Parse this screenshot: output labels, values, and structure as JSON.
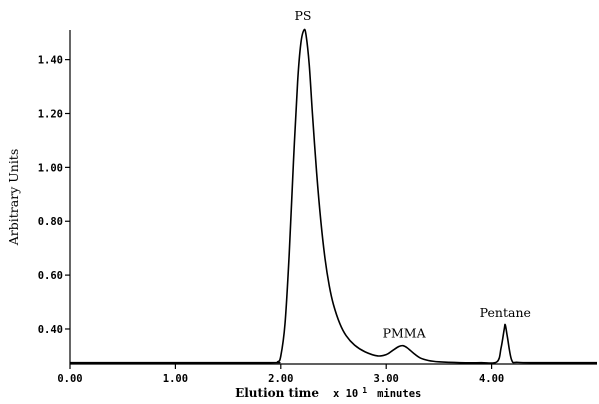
{
  "chart_data": {
    "type": "line",
    "title": "",
    "xlabel": "Elution time",
    "xlabel_unit": "x 10",
    "xlabel_exponent": "1",
    "xlabel_unit_suffix": "minutes",
    "ylabel": "Arbitrary Units",
    "xlim": [
      0.0,
      5.0
    ],
    "ylim": [
      0.27,
      1.51
    ],
    "x_ticks": [
      "0.00",
      "1.00",
      "2.00",
      "3.00",
      "4.00"
    ],
    "x_tick_values": [
      0.0,
      1.0,
      2.0,
      3.0,
      4.0
    ],
    "y_ticks": [
      "0.40",
      "0.60",
      "0.80",
      "1.00",
      "1.20",
      "1.40"
    ],
    "y_tick_values": [
      0.4,
      0.6,
      0.8,
      1.0,
      1.2,
      1.4
    ],
    "grid": false,
    "series": [
      {
        "x": [
          0.0,
          1.0,
          1.9,
          1.97,
          2.0,
          2.04,
          2.08,
          2.12,
          2.16,
          2.19,
          2.22,
          2.24,
          2.27,
          2.3,
          2.34,
          2.38,
          2.42,
          2.46,
          2.5,
          2.56,
          2.62,
          2.7,
          2.8,
          2.92,
          3.0,
          3.06,
          3.12,
          3.16,
          3.2,
          3.26,
          3.32,
          3.4,
          3.5,
          3.7,
          3.9,
          4.05,
          4.09,
          4.12,
          4.13,
          4.15,
          4.19,
          4.25,
          4.5,
          5.0
        ],
        "y": [
          0.275,
          0.275,
          0.275,
          0.278,
          0.3,
          0.42,
          0.68,
          1.02,
          1.32,
          1.46,
          1.51,
          1.49,
          1.38,
          1.2,
          0.98,
          0.8,
          0.66,
          0.56,
          0.49,
          0.42,
          0.375,
          0.34,
          0.315,
          0.3,
          0.305,
          0.32,
          0.335,
          0.338,
          0.33,
          0.31,
          0.293,
          0.283,
          0.278,
          0.275,
          0.275,
          0.278,
          0.33,
          0.4,
          0.415,
          0.37,
          0.285,
          0.276,
          0.275,
          0.275
        ]
      }
    ],
    "annotations": [
      {
        "text": "PS",
        "x": 2.21,
        "y": 1.51
      },
      {
        "text": "PMMA",
        "x": 3.17,
        "y": 0.338
      },
      {
        "text": "Pentane",
        "x": 4.13,
        "y": 0.415
      }
    ]
  }
}
